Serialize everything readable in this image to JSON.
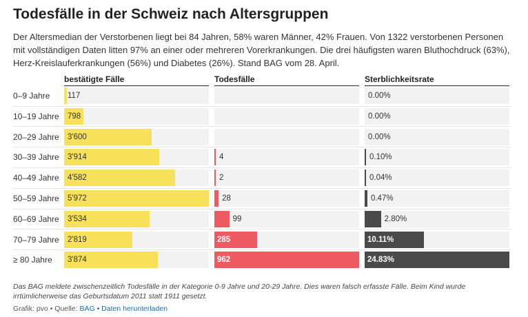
{
  "title": "Todesfälle in der Schweiz nach Altersgruppen",
  "description": "Der Altersmedian der Verstorbenen liegt bei 84 Jahren, 58% waren Männer, 42% Frauen. Von 1322 verstorbenen Personen mit vollständigen Daten litten 97% an einer oder mehreren Vorerkrankungen. Die drei häufigsten waren Bluthochdruck (63%), Herz-Kreislauferkrankungen (56%) und Diabetes (26%). Stand BAG vom 28. April.",
  "footnote": "Das BAG meldete zwischenzeitlich Todesfälle in der Kategorie 0-9 Jahre und 20-29 Jahre. Dies waren falsch erfasste Fälle. Beim Kind wurde irrtümlicherweise das Geburtsdatum 2011 statt 1911 gesetzt.",
  "credits": {
    "prefix": "Grafik: pvo • Quelle: ",
    "source_link": "BAG",
    "separator": " • ",
    "download_link": "Daten herunterladen"
  },
  "colors": {
    "cases": "#f7e15a",
    "deaths": "#ee5a62",
    "rate": "#4a4a4a",
    "track": "#f2f2f2"
  },
  "chart_data": {
    "type": "table",
    "columns": [
      "bestätigte Fälle",
      "Todesfälle",
      "Sterblichkeitsrate"
    ],
    "categories": [
      "0–9 Jahre",
      "10–19 Jahre",
      "20–29 Jahre",
      "30–39 Jahre",
      "40–49 Jahre",
      "50–59 Jahre",
      "60–69 Jahre",
      "70–79 Jahre",
      "≥ 80 Jahre"
    ],
    "series": [
      {
        "values": [
          117,
          798,
          3600,
          3914,
          4582,
          5972,
          3534,
          2819,
          3874
        ],
        "labels": [
          "117",
          "798",
          "3'600",
          "3'914",
          "4'582",
          "5'972",
          "3'534",
          "2'819",
          "3'874"
        ]
      },
      {
        "values": [
          0,
          0,
          0,
          4,
          2,
          28,
          99,
          285,
          962
        ],
        "labels": [
          "",
          "",
          "",
          "4",
          "2",
          "28",
          "99",
          "285",
          "962"
        ]
      },
      {
        "values": [
          0.0,
          0.0,
          0.0,
          0.1,
          0.04,
          0.47,
          2.8,
          10.11,
          24.83
        ],
        "labels": [
          "0.00%",
          "0.00%",
          "0.00%",
          "0.10%",
          "0.04%",
          "0.47%",
          "2.80%",
          "10.11%",
          "24.83%"
        ]
      }
    ]
  }
}
